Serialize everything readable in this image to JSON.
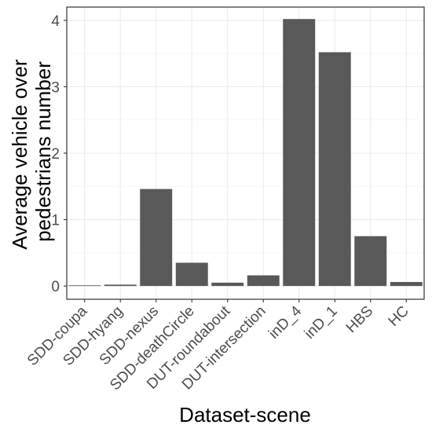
{
  "chart_data": {
    "type": "bar",
    "title": "",
    "xlabel": "Dataset-scene",
    "ylabel_lines": [
      "Average vehicle over",
      "pedestrians number"
    ],
    "categories": [
      "SDD-coupa",
      "SDD-hyang",
      "SDD-nexus",
      "SDD-deathCircle",
      "DUT-roundabout",
      "DUT-intersection",
      "inD_4",
      "inD_1",
      "HBS",
      "HC"
    ],
    "values": [
      0.01,
      0.02,
      1.46,
      0.35,
      0.05,
      0.16,
      4.02,
      3.52,
      0.75,
      0.06
    ],
    "ylim": [
      -0.2,
      4.2
    ],
    "y_ticks": [
      0,
      1,
      2,
      3,
      4
    ],
    "grid": true,
    "legend": "none",
    "colors": {
      "bar": "#595959",
      "grid_major": "#ebebeb",
      "grid_minor": "#f5f5f5",
      "panel_border": "#333333",
      "tick_text": "#4d4d4d"
    }
  }
}
